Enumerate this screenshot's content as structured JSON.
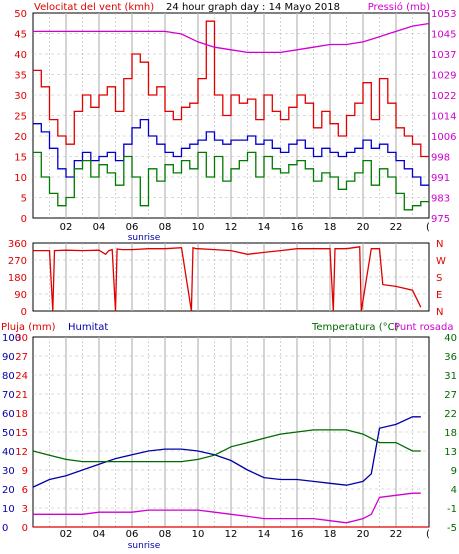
{
  "colors": {
    "wind": "#e00000",
    "wind_avg": "#0000cc",
    "wind_gust": "#007a00",
    "pressure": "#d000d0",
    "humidity": "#0000aa",
    "temperature": "#006a00",
    "dew_point": "#d000d0",
    "rain": "#e00000",
    "grid": "#b8b8b8",
    "frame": "#000000"
  },
  "chart_data": [
    {
      "type": "line",
      "title": "24 hour graph day : 14 Mayo 2018",
      "left_label": "Velocitat del vent (kmh)",
      "right_label": "Pressió (mb)",
      "x_tick_labels": [
        "02",
        "04",
        "06",
        "08",
        "10",
        "12",
        "14",
        "16",
        "18",
        "20",
        "22"
      ],
      "x_end_label": "(",
      "sunrise_label": "sunrise",
      "ylim_left": [
        0,
        50
      ],
      "y_ticks_left": [
        "0",
        "5",
        "10",
        "15",
        "20",
        "25",
        "30",
        "35",
        "40",
        "45",
        "50"
      ],
      "ylim_right": [
        975,
        1053
      ],
      "y_ticks_right": [
        "975",
        "983",
        "991",
        "998",
        "1006",
        "1014",
        "1022",
        "1029",
        "1037",
        "1045",
        "1053"
      ],
      "series": [
        {
          "role": "gust",
          "axis": "left",
          "color": "#e00000",
          "x": [
            0,
            0.5,
            1,
            1.5,
            2,
            2.5,
            3,
            3.5,
            4,
            4.5,
            5,
            5.5,
            6,
            6.5,
            7,
            7.5,
            8,
            8.5,
            9,
            9.5,
            10,
            10.5,
            11,
            11.5,
            12,
            12.5,
            13,
            13.5,
            14,
            14.5,
            15,
            15.5,
            16,
            16.5,
            17,
            17.5,
            18,
            18.5,
            19,
            19.5,
            20,
            20.5,
            21,
            21.5,
            22,
            22.5,
            23,
            23.5
          ],
          "values": [
            36,
            32,
            24,
            20,
            18,
            26,
            30,
            27,
            30,
            32,
            26,
            34,
            40,
            38,
            30,
            32,
            26,
            24,
            27,
            28,
            34,
            48,
            30,
            25,
            30,
            28,
            29,
            24,
            30,
            26,
            24,
            27,
            30,
            28,
            22,
            26,
            23,
            20,
            25,
            28,
            33,
            24,
            34,
            28,
            22,
            20,
            18,
            15
          ]
        },
        {
          "role": "average",
          "axis": "left",
          "color": "#0000cc",
          "x": [
            0,
            0.5,
            1,
            1.5,
            2,
            2.5,
            3,
            3.5,
            4,
            4.5,
            5,
            5.5,
            6,
            6.5,
            7,
            7.5,
            8,
            8.5,
            9,
            9.5,
            10,
            10.5,
            11,
            11.5,
            12,
            12.5,
            13,
            13.5,
            14,
            14.5,
            15,
            15.5,
            16,
            16.5,
            17,
            17.5,
            18,
            18.5,
            19,
            19.5,
            20,
            20.5,
            21,
            21.5,
            22,
            22.5,
            23,
            23.5
          ],
          "values": [
            23,
            21,
            17,
            12,
            10,
            14,
            16,
            14,
            15,
            16,
            14,
            18,
            22,
            24,
            20,
            18,
            16,
            15,
            17,
            18,
            19,
            21,
            19,
            18,
            19,
            19,
            20,
            18,
            19,
            17,
            16,
            18,
            19,
            17,
            15,
            17,
            16,
            15,
            16,
            17,
            19,
            17,
            18,
            16,
            14,
            12,
            10,
            8
          ]
        },
        {
          "role": "minimum",
          "axis": "left",
          "color": "#007a00",
          "x": [
            0,
            0.5,
            1,
            1.5,
            2,
            2.5,
            3,
            3.5,
            4,
            4.5,
            5,
            5.5,
            6,
            6.5,
            7,
            7.5,
            8,
            8.5,
            9,
            9.5,
            10,
            10.5,
            11,
            11.5,
            12,
            12.5,
            13,
            13.5,
            14,
            14.5,
            15,
            15.5,
            16,
            16.5,
            17,
            17.5,
            18,
            18.5,
            19,
            19.5,
            20,
            20.5,
            21,
            21.5,
            22,
            22.5,
            23,
            23.5
          ],
          "values": [
            16,
            10,
            6,
            3,
            5,
            12,
            14,
            10,
            13,
            11,
            8,
            15,
            10,
            3,
            12,
            9,
            13,
            11,
            14,
            12,
            16,
            10,
            15,
            9,
            12,
            14,
            16,
            10,
            15,
            12,
            11,
            13,
            14,
            12,
            9,
            11,
            10,
            7,
            9,
            11,
            14,
            8,
            12,
            10,
            6,
            2,
            3,
            4
          ]
        },
        {
          "role": "pressure",
          "axis": "right",
          "color": "#d000d0",
          "x": [
            0,
            1,
            2,
            3,
            4,
            5,
            6,
            7,
            8,
            9,
            10,
            11,
            12,
            13,
            14,
            15,
            16,
            17,
            18,
            19,
            20,
            21,
            22,
            23,
            24
          ],
          "values": [
            1046,
            1046,
            1046,
            1046,
            1046,
            1046,
            1046,
            1046,
            1046,
            1045,
            1042,
            1040,
            1039,
            1038,
            1038,
            1038,
            1039,
            1040,
            1041,
            1041,
            1042,
            1044,
            1046,
            1048,
            1049
          ]
        }
      ]
    },
    {
      "type": "line",
      "title": "",
      "x_tick_labels": [],
      "ylim_left": [
        0,
        360
      ],
      "y_ticks_left": [
        "0",
        "90",
        "180",
        "270",
        "360"
      ],
      "right_labels": [
        "N",
        "W",
        "S",
        "E",
        "N"
      ],
      "series": [
        {
          "role": "wind_direction",
          "color": "#e00000",
          "x": [
            0,
            1,
            1.2,
            1.3,
            2,
            3,
            4,
            4.4,
            4.6,
            4.8,
            5.0,
            5.1,
            5.4,
            6,
            7,
            8,
            9,
            9.6,
            9.7,
            9.9,
            10,
            11,
            12,
            13,
            14,
            15,
            16,
            17,
            18,
            18.2,
            18.3,
            19,
            19.8,
            19.9,
            20.5,
            21,
            21.2,
            22,
            23,
            23.5
          ],
          "values": [
            320,
            320,
            0,
            320,
            322,
            320,
            322,
            300,
            320,
            325,
            0,
            328,
            325,
            325,
            330,
            330,
            335,
            0,
            335,
            330,
            330,
            325,
            320,
            300,
            310,
            320,
            330,
            330,
            330,
            0,
            330,
            330,
            340,
            0,
            330,
            330,
            140,
            130,
            110,
            20
          ]
        }
      ]
    },
    {
      "type": "line",
      "title": "",
      "left_label_a": "Pluja (mm)",
      "left_label_b": "Humitat",
      "right_label_a": "Temperatura (°C)",
      "right_label_b": "Punt rosada",
      "x_tick_labels": [
        "02",
        "04",
        "06",
        "08",
        "10",
        "12",
        "14",
        "16",
        "18",
        "20",
        "22"
      ],
      "x_end_label": "(",
      "sunrise_label": "sunrise",
      "ylim_humidity": [
        0,
        100
      ],
      "y_ticks_humidity": [
        "0",
        "10",
        "20",
        "30",
        "40",
        "50",
        "60",
        "70",
        "80",
        "90",
        "100"
      ],
      "ylim_rain": [
        0,
        30
      ],
      "y_ticks_rain": [
        "0",
        "3",
        "6",
        "9",
        "12",
        "15",
        "18",
        "21",
        "24",
        "27",
        "30"
      ],
      "ylim_temp": [
        -5,
        40
      ],
      "y_ticks_temp": [
        "-5",
        "-1",
        "4",
        "9",
        "13",
        "18",
        "22",
        "27",
        "31",
        "36",
        "40"
      ],
      "series": [
        {
          "role": "humidity",
          "axis": "humidity",
          "color": "#0000aa",
          "x": [
            0,
            1,
            2,
            3,
            4,
            5,
            6,
            7,
            8,
            9,
            10,
            11,
            12,
            13,
            14,
            15,
            16,
            17,
            18,
            19,
            20,
            20.5,
            21,
            22,
            23,
            23.5
          ],
          "values": [
            21,
            25,
            27,
            30,
            33,
            36,
            38,
            40,
            41,
            41,
            40,
            38,
            35,
            30,
            26,
            25,
            25,
            24,
            23,
            22,
            24,
            28,
            52,
            54,
            58,
            58
          ]
        },
        {
          "role": "temperature",
          "axis": "temp",
          "color": "#006a00",
          "x": [
            0,
            1,
            2,
            3,
            4,
            5,
            6,
            7,
            8,
            9,
            10,
            11,
            12,
            13,
            14,
            15,
            16,
            17,
            18,
            19,
            20,
            20.5,
            21,
            22,
            23,
            23.5
          ],
          "values": [
            13,
            12,
            11,
            10.5,
            10.5,
            10.5,
            10.5,
            10.5,
            10.5,
            10.5,
            11,
            12,
            14,
            15,
            16,
            17,
            17.5,
            18,
            18,
            18,
            17,
            16,
            15,
            15,
            13,
            13
          ]
        },
        {
          "role": "dew_point",
          "axis": "temp",
          "color": "#d000d0",
          "x": [
            0,
            1,
            2,
            3,
            4,
            5,
            6,
            7,
            8,
            9,
            10,
            11,
            12,
            13,
            14,
            15,
            16,
            17,
            18,
            19,
            20,
            20.5,
            21,
            22,
            23,
            23.5
          ],
          "values": [
            -2,
            -2,
            -2,
            -2,
            -1.5,
            -1.5,
            -1.5,
            -1,
            -1,
            -1,
            -1,
            -1.5,
            -2,
            -2.5,
            -3,
            -3,
            -3,
            -3,
            -3.5,
            -4,
            -3,
            -2,
            2,
            2.5,
            3,
            3
          ]
        },
        {
          "role": "rain",
          "axis": "rain",
          "color": "#e00000",
          "x": [
            0,
            24
          ],
          "values": [
            0,
            0
          ]
        }
      ]
    }
  ]
}
